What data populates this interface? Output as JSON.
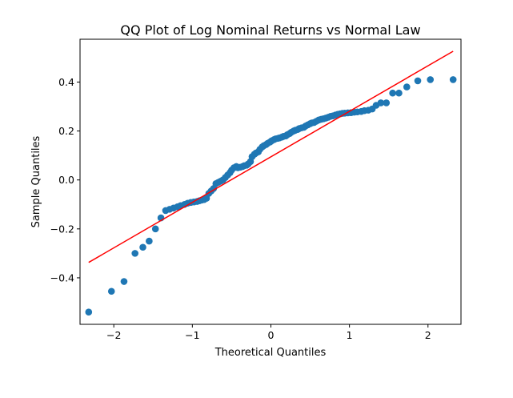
{
  "chart_data": {
    "type": "scatter",
    "title": "QQ Plot of Log Nominal Returns vs Normal Law",
    "xlabel": "Theoretical Quantiles",
    "ylabel": "Sample Quantiles",
    "xlim": [
      -2.43,
      2.42
    ],
    "ylim": [
      -0.59,
      0.575
    ],
    "xticks": [
      -2,
      -1,
      0,
      1,
      2
    ],
    "xtick_labels": [
      "−2",
      "−1",
      "0",
      "1",
      "2"
    ],
    "yticks": [
      -0.4,
      -0.2,
      0.0,
      0.2,
      0.4
    ],
    "ytick_labels": [
      "−0.4",
      "−0.2",
      "0.0",
      "0.2",
      "0.4"
    ],
    "grid": false,
    "colors": {
      "points": "#1f77b4",
      "line": "#ff0000"
    },
    "series": [
      {
        "type": "scatter",
        "x": [
          -2.32,
          -2.03,
          -1.87,
          -1.73,
          -1.63,
          -1.55,
          -1.47,
          -1.4,
          -1.34,
          -1.29,
          -1.24,
          -1.19,
          -1.15,
          -1.1,
          -1.06,
          -1.02,
          -0.98,
          -0.94,
          -0.91,
          -0.88,
          -0.85,
          -0.82,
          -0.79,
          -0.76,
          -0.73,
          -0.7,
          -0.67,
          -0.64,
          -0.61,
          -0.58,
          -0.55,
          -0.52,
          -0.5,
          -0.47,
          -0.44,
          -0.42,
          -0.39,
          -0.36,
          -0.34,
          -0.31,
          -0.29,
          -0.26,
          -0.24,
          -0.21,
          -0.19,
          -0.16,
          -0.14,
          -0.11,
          -0.09,
          -0.06,
          -0.04,
          -0.01,
          0.01,
          0.04,
          0.06,
          0.09,
          0.11,
          0.14,
          0.16,
          0.19,
          0.21,
          0.24,
          0.26,
          0.29,
          0.31,
          0.34,
          0.36,
          0.39,
          0.42,
          0.44,
          0.47,
          0.5,
          0.52,
          0.55,
          0.58,
          0.61,
          0.64,
          0.67,
          0.7,
          0.73,
          0.76,
          0.79,
          0.82,
          0.85,
          0.88,
          0.91,
          0.94,
          0.98,
          1.02,
          1.06,
          1.1,
          1.15,
          1.19,
          1.24,
          1.29,
          1.34,
          1.4,
          1.47,
          1.55,
          1.63,
          1.73,
          1.87,
          2.03,
          2.32
        ],
        "y": [
          -0.54,
          -0.455,
          -0.415,
          -0.3,
          -0.275,
          -0.25,
          -0.2,
          -0.155,
          -0.125,
          -0.12,
          -0.115,
          -0.11,
          -0.105,
          -0.1,
          -0.095,
          -0.092,
          -0.09,
          -0.088,
          -0.085,
          -0.082,
          -0.08,
          -0.075,
          -0.055,
          -0.045,
          -0.035,
          -0.015,
          -0.01,
          -0.005,
          0.0,
          0.01,
          0.02,
          0.03,
          0.04,
          0.05,
          0.055,
          0.05,
          0.052,
          0.055,
          0.058,
          0.06,
          0.065,
          0.075,
          0.095,
          0.105,
          0.11,
          0.115,
          0.125,
          0.135,
          0.14,
          0.145,
          0.15,
          0.155,
          0.16,
          0.165,
          0.168,
          0.17,
          0.172,
          0.175,
          0.178,
          0.18,
          0.185,
          0.19,
          0.195,
          0.2,
          0.203,
          0.206,
          0.21,
          0.213,
          0.215,
          0.22,
          0.225,
          0.23,
          0.233,
          0.235,
          0.24,
          0.245,
          0.248,
          0.25,
          0.253,
          0.256,
          0.26,
          0.262,
          0.265,
          0.268,
          0.27,
          0.272,
          0.273,
          0.274,
          0.275,
          0.277,
          0.278,
          0.28,
          0.283,
          0.285,
          0.29,
          0.305,
          0.315,
          0.315,
          0.355,
          0.355,
          0.38,
          0.405,
          0.41,
          0.41
        ]
      },
      {
        "type": "line",
        "x": [
          -2.32,
          2.32
        ],
        "y": [
          -0.337,
          0.526
        ]
      }
    ]
  }
}
